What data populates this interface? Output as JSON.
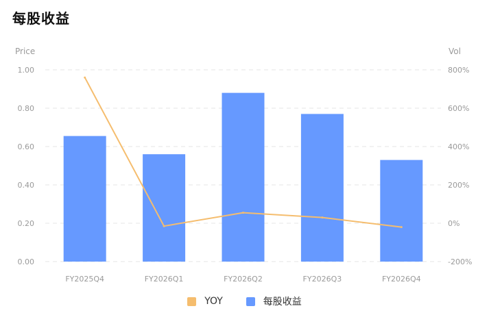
{
  "title": "每股收益",
  "colors": {
    "bar": "#6699ff",
    "line": "#f5bd6e",
    "grid": "#e6e6e6",
    "text": "#999999"
  },
  "legend": [
    {
      "name": "YOY",
      "color": "#f5bd6e",
      "icon": "line-swatch"
    },
    {
      "name": "每股收益",
      "color": "#6699ff",
      "icon": "bar-swatch"
    }
  ],
  "chart_data": {
    "type": "bar",
    "categories": [
      "FY2025Q4",
      "FY2026Q1",
      "FY2026Q2",
      "FY2026Q3",
      "FY2026Q4"
    ],
    "ylabel_left": "Price",
    "ylabel_right": "Vol",
    "left_axis": {
      "min": 0,
      "max": 1,
      "ticks": [
        "0.00",
        "0.20",
        "0.40",
        "0.60",
        "0.80",
        "1.00"
      ]
    },
    "right_axis": {
      "min": -200,
      "max": 800,
      "ticks": [
        "-200%",
        "0%",
        "200%",
        "400%",
        "600%",
        "800%"
      ]
    },
    "grid": true,
    "legend_position": "bottom-center",
    "series": [
      {
        "name": "每股收益",
        "type": "bar",
        "axis": "left",
        "values": [
          0.655,
          0.56,
          0.88,
          0.77,
          0.53
        ]
      },
      {
        "name": "YOY",
        "type": "line",
        "axis": "right",
        "values": [
          760,
          -15,
          55,
          30,
          -20
        ]
      }
    ]
  }
}
